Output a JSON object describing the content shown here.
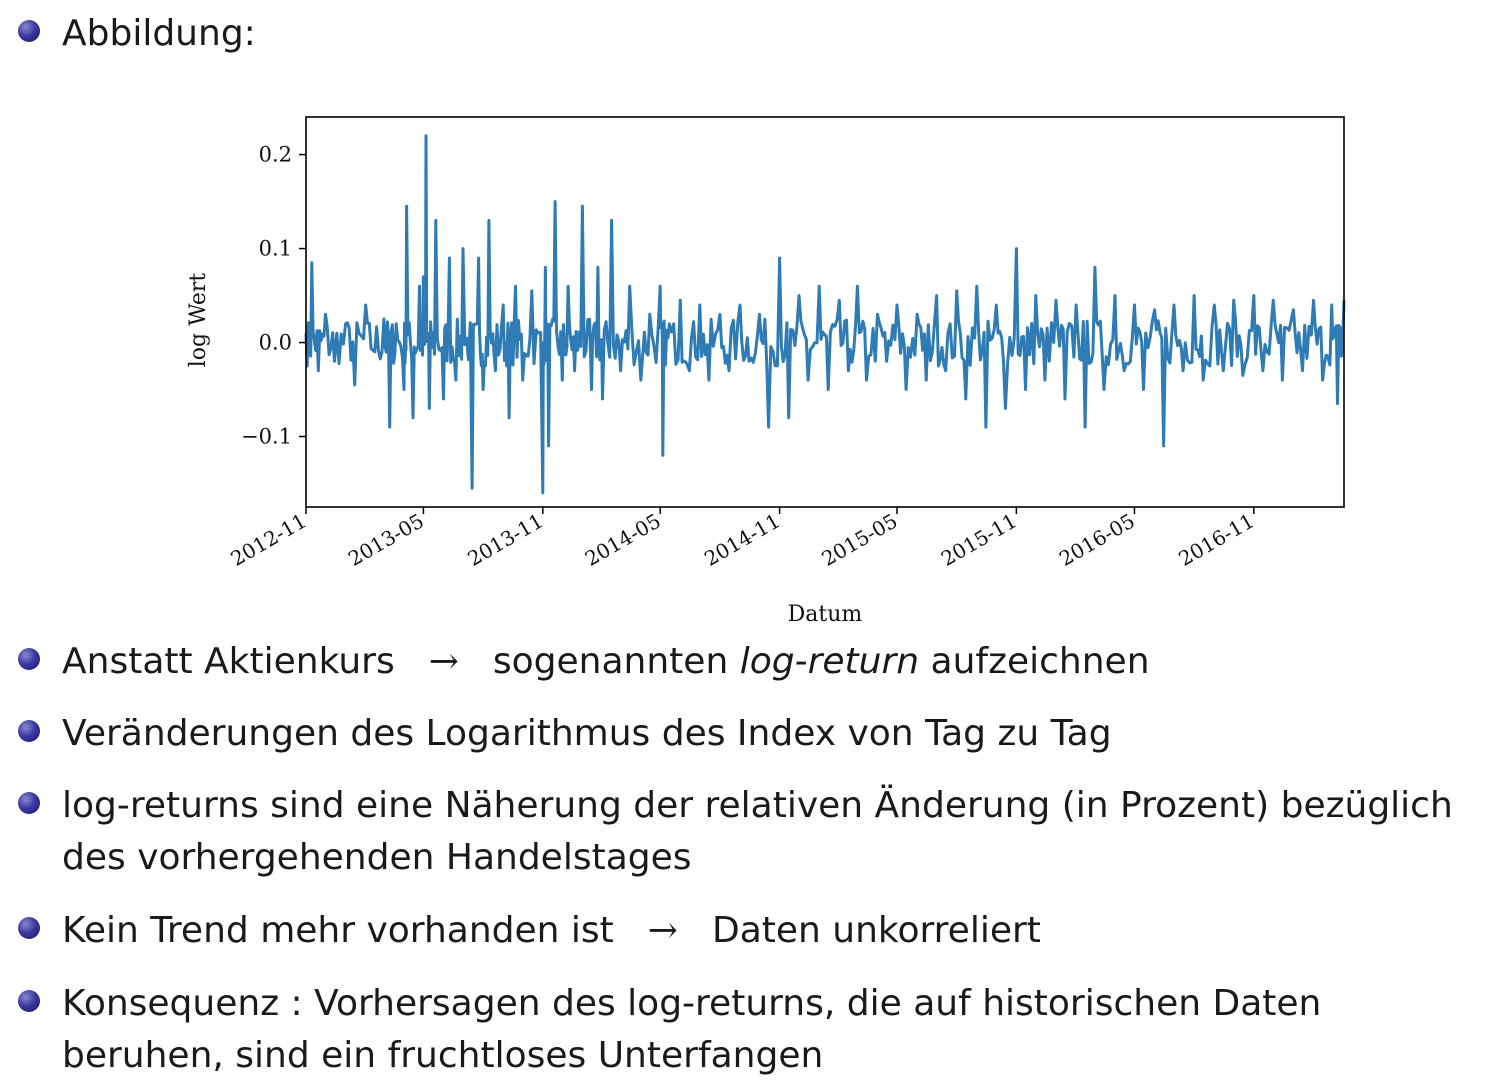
{
  "heading": "Abbildung:",
  "bullets": [
    {
      "before": "Anstatt Aktienkurs",
      "arrow": "→",
      "after_pre": "sogenannten ",
      "italic": "log-return",
      "after_post": " aufzeichnen"
    },
    {
      "text": "Veränderungen des Logarithmus des Index von Tag zu Tag"
    },
    {
      "line1": "log-returns sind eine Näherung der relativen Änderung (in Prozent) bezüglich",
      "line2": "des vorhergehenden Handelstages"
    },
    {
      "before": "Kein Trend mehr vorhanden ist",
      "arrow": "→",
      "after": "Daten unkorreliert"
    },
    {
      "line1": "Konsequenz : Vorhersagen des log-returns, die auf historischen Daten",
      "line2": "beruhen, sind ein fruchtloses Unterfangen"
    }
  ],
  "chart_data": {
    "type": "line",
    "xlabel": "Datum",
    "ylabel": "log Wert",
    "x_start": "2012-11-01",
    "x_end": "2017-03-20",
    "ylim": [
      -0.175,
      0.24
    ],
    "yticks": [
      -0.1,
      0.0,
      0.1,
      0.2
    ],
    "ytick_labels": [
      "−0.1",
      "0.0",
      "0.1",
      "0.2"
    ],
    "xticks": [
      "2012-11",
      "2013-05",
      "2013-11",
      "2014-05",
      "2014-11",
      "2015-05",
      "2015-11",
      "2016-05",
      "2016-11"
    ],
    "grid": false,
    "color": "#2f7bb5",
    "series": [
      {
        "x": [
          "2012-11-01",
          "2012-11-10",
          "2012-11-20",
          "2012-12-01",
          "2012-12-15",
          "2013-01-01",
          "2013-01-15",
          "2013-02-01",
          "2013-02-15",
          "2013-03-01",
          "2013-03-10",
          "2013-03-20",
          "2013-04-01",
          "2013-04-05",
          "2013-04-15",
          "2013-04-25",
          "2013-05-01",
          "2013-05-05",
          "2013-05-10",
          "2013-05-20",
          "2013-06-01",
          "2013-06-10",
          "2013-06-20",
          "2013-07-01",
          "2013-07-15",
          "2013-07-25",
          "2013-08-01",
          "2013-08-10",
          "2013-08-20",
          "2013-09-01",
          "2013-09-10",
          "2013-09-20",
          "2013-10-01",
          "2013-10-15",
          "2013-11-01",
          "2013-11-05",
          "2013-11-10",
          "2013-11-20",
          "2013-12-01",
          "2013-12-10",
          "2013-12-20",
          "2014-01-01",
          "2014-01-15",
          "2014-01-25",
          "2014-02-01",
          "2014-02-15",
          "2014-03-01",
          "2014-03-15",
          "2014-04-01",
          "2014-04-15",
          "2014-05-01",
          "2014-05-05",
          "2014-05-15",
          "2014-06-01",
          "2014-06-15",
          "2014-07-01",
          "2014-07-15",
          "2014-08-01",
          "2014-08-15",
          "2014-09-01",
          "2014-09-15",
          "2014-10-01",
          "2014-10-15",
          "2014-11-01",
          "2014-11-15",
          "2014-12-01",
          "2014-12-15",
          "2015-01-01",
          "2015-01-15",
          "2015-02-01",
          "2015-02-15",
          "2015-03-01",
          "2015-03-15",
          "2015-04-01",
          "2015-04-15",
          "2015-05-01",
          "2015-05-15",
          "2015-06-01",
          "2015-06-15",
          "2015-07-01",
          "2015-07-15",
          "2015-08-01",
          "2015-08-15",
          "2015-09-01",
          "2015-09-15",
          "2015-10-01",
          "2015-10-15",
          "2015-11-01",
          "2015-11-15",
          "2015-12-01",
          "2015-12-15",
          "2016-01-01",
          "2016-01-15",
          "2016-02-01",
          "2016-02-15",
          "2016-03-01",
          "2016-03-15",
          "2016-04-01",
          "2016-04-15",
          "2016-05-01",
          "2016-05-15",
          "2016-06-01",
          "2016-06-15",
          "2016-07-01",
          "2016-07-15",
          "2016-08-01",
          "2016-08-15",
          "2016-09-01",
          "2016-09-15",
          "2016-10-01",
          "2016-10-15",
          "2016-11-01",
          "2016-11-15",
          "2016-12-01",
          "2016-12-15",
          "2017-01-01",
          "2017-01-15",
          "2017-02-01",
          "2017-02-15",
          "2017-03-01",
          "2017-03-10",
          "2017-03-20"
        ],
        "y": [
          0.01,
          0.085,
          -0.03,
          0.03,
          -0.02,
          0.02,
          -0.045,
          0.04,
          -0.01,
          0.025,
          -0.09,
          0.02,
          -0.05,
          0.145,
          -0.08,
          0.06,
          0.07,
          0.22,
          -0.07,
          0.13,
          -0.06,
          0.09,
          -0.04,
          0.1,
          -0.155,
          0.09,
          -0.05,
          0.13,
          -0.03,
          0.04,
          -0.08,
          0.06,
          -0.04,
          0.055,
          -0.16,
          0.08,
          -0.11,
          0.15,
          -0.04,
          0.06,
          -0.03,
          0.145,
          -0.05,
          0.08,
          -0.06,
          0.13,
          -0.03,
          0.06,
          -0.04,
          0.03,
          0.06,
          -0.12,
          0.02,
          0.045,
          -0.03,
          0.04,
          -0.04,
          0.03,
          -0.03,
          0.04,
          -0.02,
          0.03,
          -0.09,
          0.09,
          -0.08,
          0.05,
          -0.04,
          0.06,
          -0.05,
          0.045,
          -0.03,
          0.06,
          -0.04,
          0.03,
          -0.02,
          0.04,
          -0.05,
          0.03,
          -0.04,
          0.05,
          -0.03,
          0.055,
          -0.06,
          0.06,
          -0.09,
          0.04,
          -0.07,
          0.1,
          -0.05,
          0.05,
          -0.04,
          0.045,
          -0.06,
          0.04,
          -0.09,
          0.08,
          -0.05,
          0.05,
          -0.03,
          0.04,
          -0.05,
          0.035,
          -0.11,
          0.04,
          -0.03,
          0.05,
          -0.04,
          0.04,
          -0.03,
          0.045,
          -0.035,
          0.05,
          -0.03,
          0.045,
          -0.04,
          0.035,
          -0.03,
          0.045,
          -0.04,
          0.04,
          -0.065,
          0.045
        ]
      }
    ]
  }
}
